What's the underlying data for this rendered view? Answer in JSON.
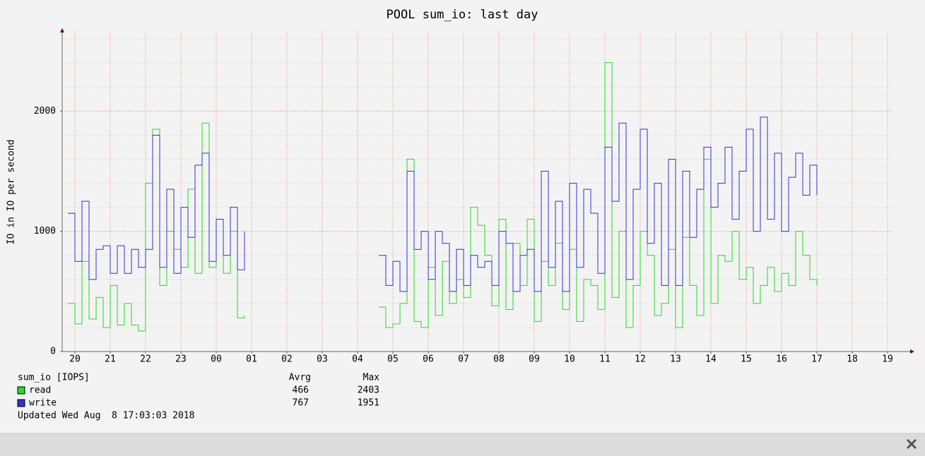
{
  "chart_data": {
    "type": "line",
    "title": "POOL sum_io: last day",
    "y_label": "IO in IO per second",
    "x": [
      19.8,
      20,
      20.2,
      20.4,
      20.6,
      20.8,
      21,
      21.2,
      21.4,
      21.6,
      21.8,
      22,
      22.2,
      22.4,
      22.6,
      22.8,
      23,
      23.2,
      23.4,
      23.6,
      23.8,
      24,
      24.2,
      24.4,
      24.6,
      24.8,
      25,
      25.2,
      25.4,
      25.6,
      25.8,
      26,
      26.2,
      26.4,
      26.6,
      26.8,
      27,
      27.2,
      27.4,
      27.6,
      27.8,
      28,
      28.2,
      28.4,
      28.6,
      28.8,
      29,
      29.2,
      29.4,
      29.6,
      29.8,
      30,
      30.2,
      30.4,
      30.6,
      30.8,
      31,
      31.2,
      31.4,
      31.6,
      31.8,
      32,
      32.2,
      32.4,
      32.6,
      32.8,
      33,
      33.2,
      33.4,
      33.6,
      33.8,
      34,
      34.2,
      34.4,
      34.6,
      34.8,
      35,
      35.2,
      35.4,
      35.6,
      35.8,
      36,
      36.2,
      36.4,
      36.6,
      36.8,
      37,
      37.2,
      37.4,
      37.6,
      37.8,
      38,
      38.2,
      38.4,
      38.6,
      38.8,
      39,
      39.2,
      39.4,
      39.6,
      39.8,
      40,
      40.2,
      40.4,
      40.6,
      40.8,
      41
    ],
    "xlim": [
      19.64,
      43.16
    ],
    "xticks": [
      20,
      21,
      22,
      23,
      {
        "value": 24,
        "label": "00"
      },
      {
        "value": 25,
        "label": "01"
      },
      {
        "value": 26,
        "label": "02"
      },
      {
        "value": 27,
        "label": "03"
      },
      {
        "value": 28,
        "label": "04"
      },
      {
        "value": 29,
        "label": "05"
      },
      {
        "value": 30,
        "label": "06"
      },
      {
        "value": 31,
        "label": "07"
      },
      {
        "value": 32,
        "label": "08"
      },
      {
        "value": 33,
        "label": "09"
      },
      {
        "value": 34,
        "label": "10"
      },
      {
        "value": 35,
        "label": "11"
      },
      {
        "value": 36,
        "label": "12"
      },
      {
        "value": 37,
        "label": "13"
      },
      {
        "value": 38,
        "label": "14"
      },
      {
        "value": 39,
        "label": "15"
      },
      {
        "value": 40,
        "label": "16"
      },
      {
        "value": 41,
        "label": "17"
      },
      {
        "value": 42,
        "label": "18"
      },
      {
        "value": 43,
        "label": "19"
      }
    ],
    "ylim": [
      0,
      2660
    ],
    "yticks": [
      0,
      1000,
      2000
    ],
    "y_minor_ticks": [
      200,
      400,
      600,
      800,
      1200,
      1400,
      1600,
      1800,
      2200,
      2400,
      2600
    ],
    "grid": true,
    "step": true,
    "legend_header": [
      "sum_io [IOPS]",
      "Avrg",
      "Max"
    ],
    "series": [
      {
        "name": "read",
        "color": "#22dd22",
        "avrg": 466,
        "max": 2403,
        "values": [
          400,
          230,
          750,
          270,
          450,
          200,
          550,
          220,
          400,
          220,
          170,
          1400,
          1850,
          550,
          1000,
          850,
          700,
          1350,
          650,
          1900,
          700,
          1100,
          650,
          1000,
          280,
          300,
          null,
          null,
          null,
          null,
          null,
          null,
          null,
          null,
          null,
          null,
          null,
          null,
          null,
          null,
          null,
          null,
          null,
          null,
          370,
          200,
          230,
          400,
          1600,
          250,
          200,
          700,
          300,
          750,
          400,
          600,
          450,
          1200,
          1050,
          800,
          380,
          1100,
          350,
          900,
          550,
          1100,
          250,
          750,
          550,
          900,
          350,
          850,
          250,
          600,
          550,
          350,
          2403,
          450,
          1000,
          200,
          550,
          1000,
          800,
          300,
          400,
          850,
          200,
          950,
          550,
          300,
          1600,
          400,
          800,
          750,
          1000,
          600,
          700,
          400,
          550,
          700,
          500,
          650,
          550,
          1000,
          800,
          600,
          550
        ]
      },
      {
        "name": "write",
        "color": "#3333cc",
        "avrg": 767,
        "max": 1951,
        "values": [
          1150,
          750,
          1250,
          600,
          850,
          880,
          650,
          880,
          650,
          850,
          700,
          850,
          1800,
          700,
          1350,
          650,
          1200,
          950,
          1550,
          1650,
          750,
          1100,
          800,
          1200,
          680,
          1000,
          null,
          null,
          null,
          null,
          null,
          null,
          null,
          null,
          null,
          null,
          null,
          null,
          null,
          null,
          null,
          null,
          null,
          null,
          800,
          550,
          750,
          500,
          1500,
          850,
          1000,
          600,
          1000,
          900,
          500,
          850,
          550,
          800,
          700,
          750,
          550,
          1000,
          900,
          500,
          800,
          850,
          500,
          1500,
          700,
          1250,
          500,
          1400,
          700,
          1350,
          1150,
          650,
          1700,
          1250,
          1900,
          600,
          1350,
          1850,
          900,
          1400,
          550,
          1600,
          550,
          1500,
          950,
          1350,
          1700,
          1200,
          1400,
          1700,
          1100,
          1500,
          1850,
          1000,
          1950,
          1100,
          1650,
          1000,
          1450,
          1650,
          1300,
          1550,
          1300
        ]
      }
    ],
    "updated": "Updated Wed Aug  8 17:03:03 2018"
  }
}
